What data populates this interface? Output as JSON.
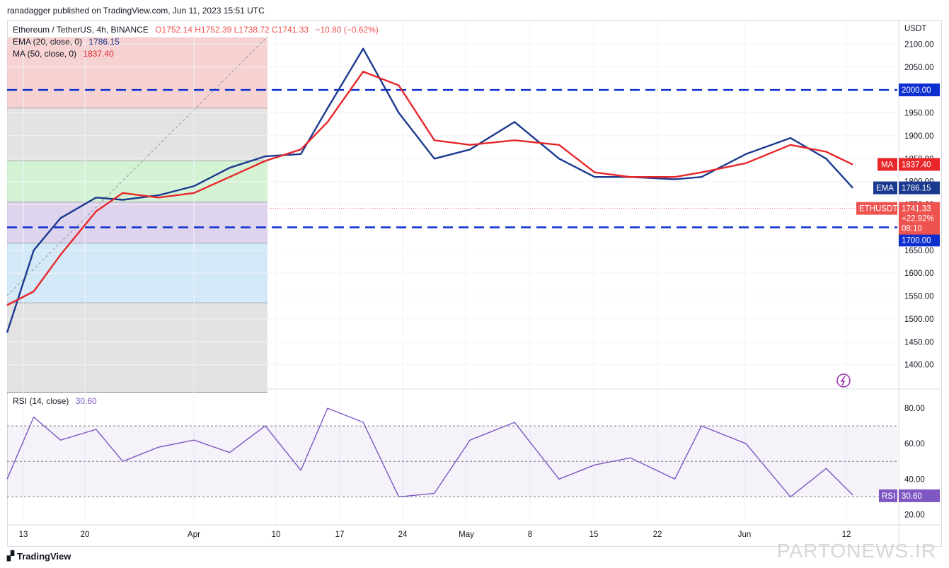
{
  "header": {
    "publisher": "ranadagger published on TradingView.com, Jun 11, 2023 15:51 UTC"
  },
  "legend": {
    "symbol": "Ethereum / TetherUS, 4h, BINANCE",
    "ohlc": "O1752.14  H1752.39  L1738.72  C1741.33",
    "change": "−10.80 (−0.62%)",
    "ema_label": "EMA (20, close, 0)",
    "ema_value": "1786.15",
    "ma_label": "MA (50, close, 0)",
    "ma_value": "1837.40",
    "rsi_label": "RSI (14, close)",
    "rsi_value": "30.60"
  },
  "colors": {
    "up": "#26a69a",
    "down": "#ef5350",
    "ema": "#1a3a8f",
    "ma": "#e8262a",
    "level": "#0d2fd0",
    "rsi": "#7e57c2",
    "grid": "#f0f3fa"
  },
  "price_axis": {
    "currency": "USDT",
    "ticks": [
      "2100.00",
      "2050.00",
      "1950.00",
      "1900.00",
      "1850.00",
      "1800.00",
      "1750.00",
      "1650.00",
      "1600.00",
      "1550.00",
      "1500.00",
      "1450.00",
      "1400.00"
    ]
  },
  "price_tags": {
    "level_2000": "2000.00",
    "level_1700": "1700.00",
    "ma_tag": "MA",
    "ma_value": "1837.40",
    "ema_tag": "EMA",
    "ema_value": "1786.15",
    "sym_tag": "ETHUSDT",
    "last": "1741.33",
    "pct": "+22.92%",
    "timer": "08:10"
  },
  "rsi_axis": {
    "ticks": [
      "80.00",
      "60.00",
      "40.00",
      "20.00"
    ],
    "tag": "RSI",
    "value": "30.60"
  },
  "time_axis": {
    "ticks": [
      "13",
      "20",
      "Apr",
      "10",
      "17",
      "24",
      "May",
      "8",
      "15",
      "22",
      "Jun",
      "12"
    ]
  },
  "branding": {
    "logo": "TradingView",
    "watermark": "PARTONEWS.IR"
  },
  "chart_data": {
    "type": "line",
    "title": "Ethereum / TetherUS, 4h, BINANCE",
    "price_range": [
      1350,
      2150
    ],
    "rsi_range": [
      15,
      90
    ],
    "horizontal_levels": [
      2000,
      1700
    ],
    "fib_zones": [
      {
        "from": 1960,
        "to": 2115,
        "color": "#f4c7c7"
      },
      {
        "from": 1845,
        "to": 1960,
        "color": "#dcdcdc"
      },
      {
        "from": 1755,
        "to": 1845,
        "color": "#c9f0c9"
      },
      {
        "from": 1665,
        "to": 1755,
        "color": "#d6c9ea"
      },
      {
        "from": 1535,
        "to": 1665,
        "color": "#c8e3f5"
      },
      {
        "from": 1340,
        "to": 1535,
        "color": "#dcdcdc"
      }
    ],
    "series": [
      {
        "name": "EMA (20, close, 0)",
        "key": "ema",
        "x": [
          0,
          0.03,
          0.06,
          0.1,
          0.13,
          0.17,
          0.21,
          0.25,
          0.29,
          0.33,
          0.36,
          0.4,
          0.44,
          0.48,
          0.52,
          0.57,
          0.62,
          0.66,
          0.7,
          0.75,
          0.78,
          0.83,
          0.88,
          0.92,
          0.95
        ],
        "values": [
          1470,
          1650,
          1720,
          1765,
          1760,
          1770,
          1790,
          1830,
          1855,
          1860,
          1960,
          2090,
          1950,
          1850,
          1870,
          1930,
          1850,
          1810,
          1810,
          1805,
          1810,
          1860,
          1895,
          1850,
          1786
        ]
      },
      {
        "name": "MA (50, close, 0)",
        "key": "ma",
        "x": [
          0,
          0.03,
          0.06,
          0.1,
          0.13,
          0.17,
          0.21,
          0.25,
          0.29,
          0.33,
          0.36,
          0.4,
          0.44,
          0.48,
          0.52,
          0.57,
          0.62,
          0.66,
          0.7,
          0.75,
          0.78,
          0.83,
          0.88,
          0.92,
          0.95
        ],
        "values": [
          1530,
          1560,
          1640,
          1735,
          1775,
          1765,
          1775,
          1810,
          1845,
          1870,
          1930,
          2040,
          2010,
          1890,
          1880,
          1890,
          1880,
          1820,
          1810,
          1810,
          1820,
          1840,
          1880,
          1865,
          1837
        ]
      },
      {
        "name": "RSI (14, close)",
        "key": "rsi",
        "x": [
          0,
          0.03,
          0.06,
          0.1,
          0.13,
          0.17,
          0.21,
          0.25,
          0.29,
          0.33,
          0.36,
          0.4,
          0.44,
          0.48,
          0.52,
          0.57,
          0.62,
          0.66,
          0.7,
          0.75,
          0.78,
          0.83,
          0.88,
          0.92,
          0.95
        ],
        "values": [
          40,
          75,
          62,
          68,
          50,
          58,
          62,
          55,
          70,
          45,
          80,
          72,
          30,
          32,
          62,
          72,
          40,
          48,
          52,
          40,
          70,
          60,
          30,
          46,
          31
        ]
      }
    ]
  }
}
